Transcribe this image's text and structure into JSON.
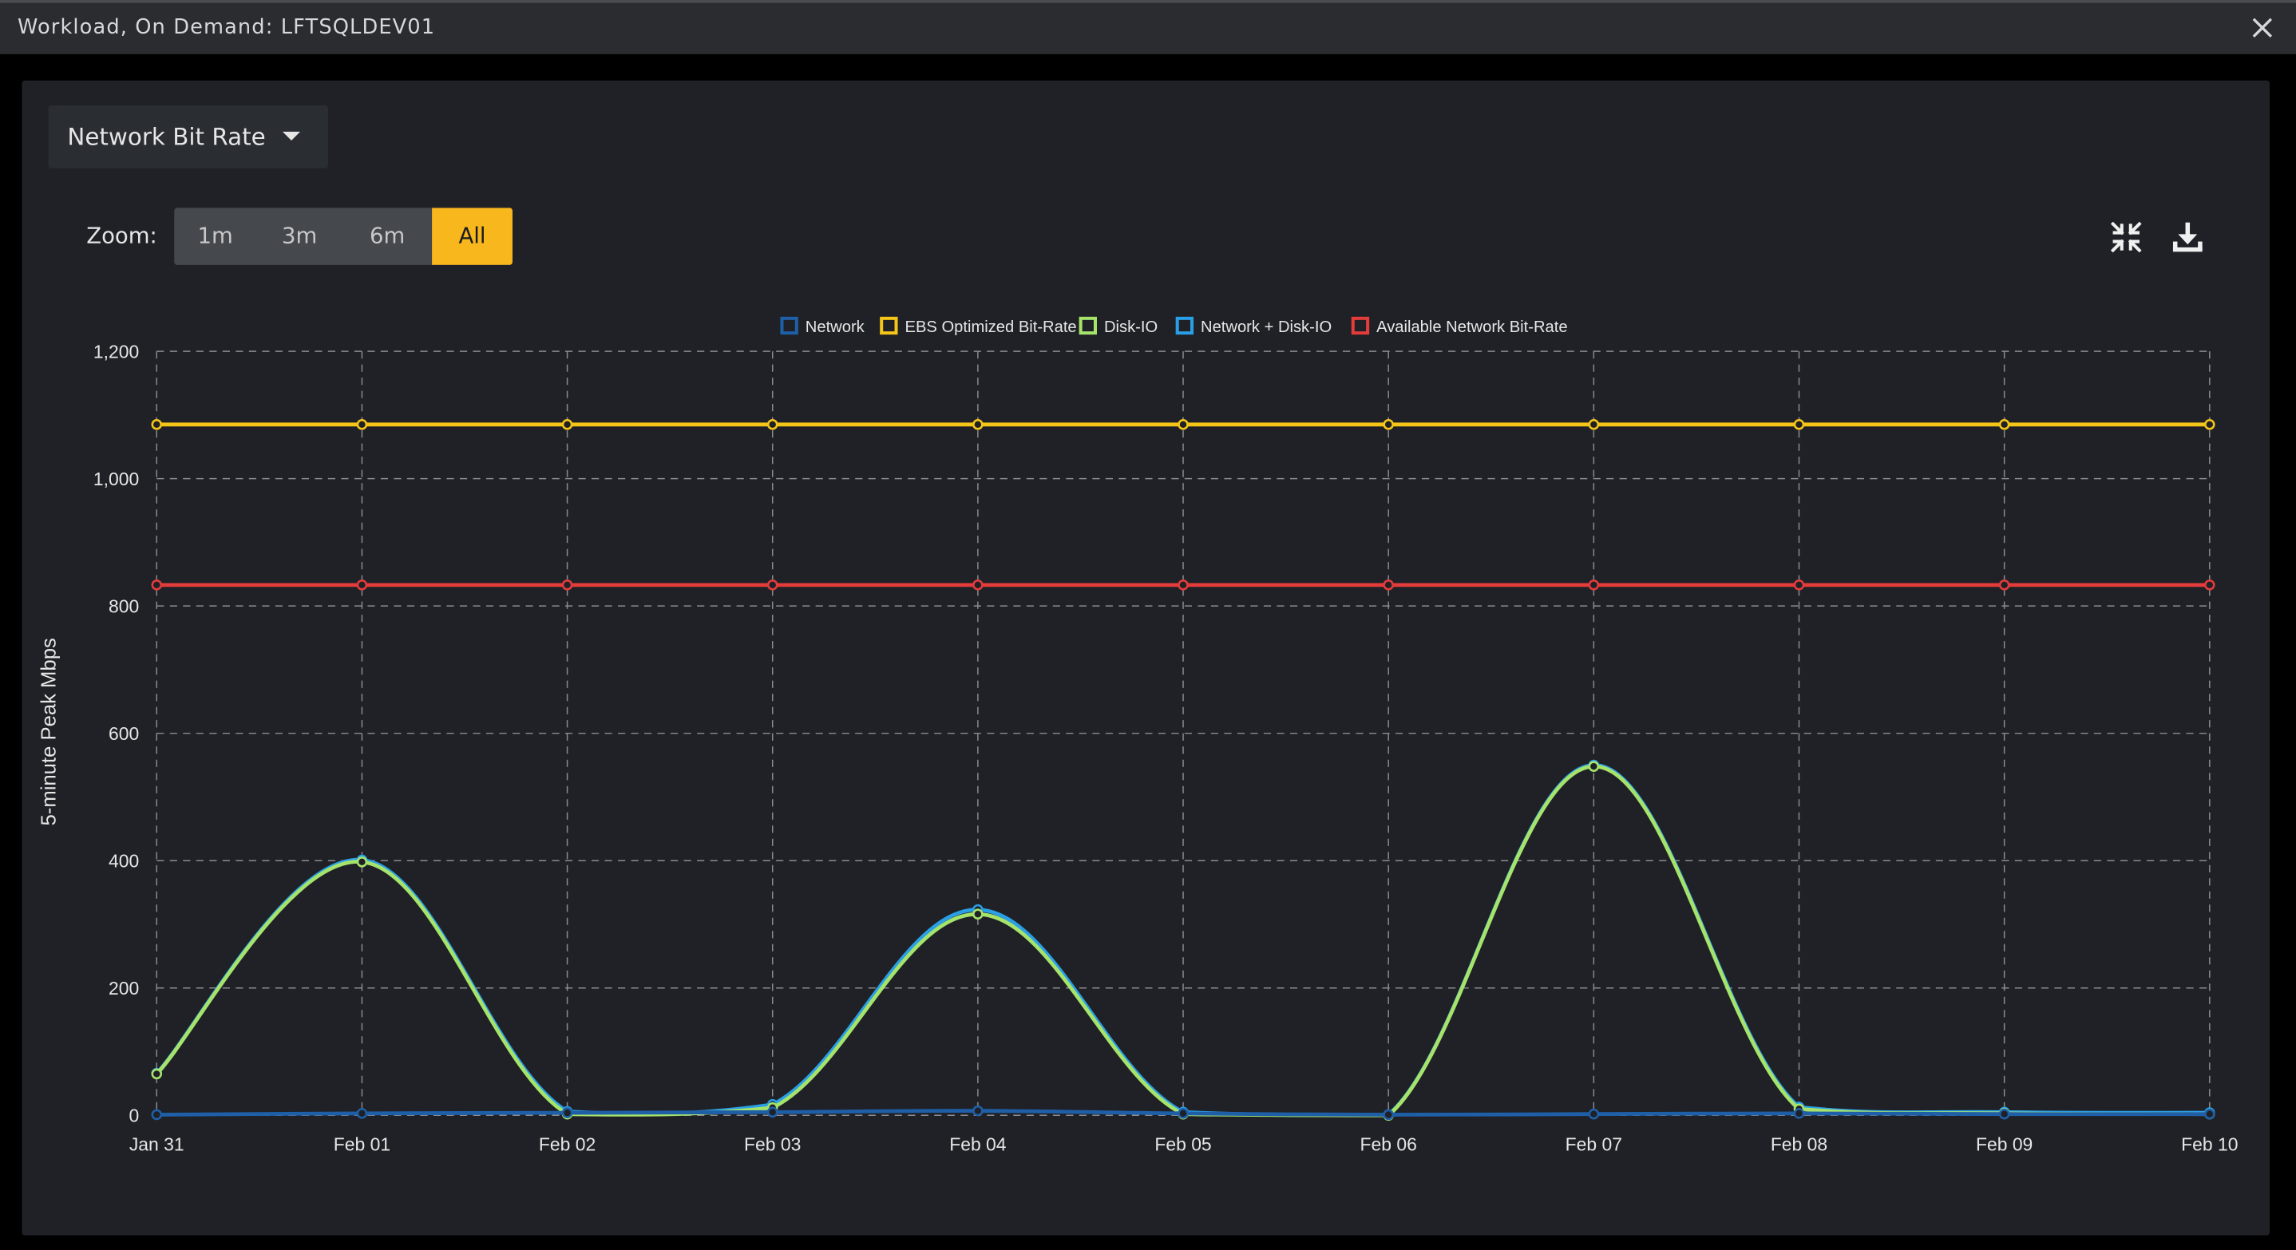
{
  "window": {
    "title": "Workload, On Demand: LFTSQLDEV01",
    "close_icon": "close-icon"
  },
  "toolbar": {
    "metric_selector": "Network Bit Rate",
    "zoom_label": "Zoom:",
    "zoom_options": [
      "1m",
      "3m",
      "6m",
      "All"
    ],
    "zoom_selected": "All",
    "collapse_icon": "collapse-arrows-icon",
    "download_icon": "download-icon"
  },
  "colors": {
    "accent": "#f7b71d",
    "network": "#1f5fa8",
    "ebs": "#f5c518",
    "disk_io": "#a6e36b",
    "network_disk_io": "#2a9fe6",
    "available": "#e43b3b"
  },
  "chart_data": {
    "type": "line",
    "ylabel": "5-minute Peak Mbps",
    "xlabel": "",
    "ylim": [
      0,
      1200
    ],
    "yticks": [
      0,
      200,
      400,
      600,
      800,
      1000,
      1200
    ],
    "ytick_labels": [
      "0",
      "200",
      "400",
      "600",
      "800",
      "1,000",
      "1,200"
    ],
    "categories": [
      "Jan 31",
      "Feb 01",
      "Feb 02",
      "Feb 03",
      "Feb 04",
      "Feb 05",
      "Feb 06",
      "Feb 07",
      "Feb 08",
      "Feb 09",
      "Feb 10"
    ],
    "grid": true,
    "legend_position": "top-center",
    "series": [
      {
        "name": "Network",
        "color": "#1f5fa8",
        "values": [
          1,
          3,
          4,
          5,
          7,
          3,
          1,
          2,
          3,
          2,
          2
        ]
      },
      {
        "name": "EBS Optimized Bit-Rate",
        "color": "#f5c518",
        "values": [
          1085,
          1085,
          1085,
          1085,
          1085,
          1085,
          1085,
          1085,
          1085,
          1085,
          1085
        ]
      },
      {
        "name": "Disk-IO",
        "color": "#a6e36b",
        "values": [
          65,
          398,
          2,
          12,
          316,
          2,
          0,
          548,
          10,
          3,
          2
        ]
      },
      {
        "name": "Network + Disk-IO",
        "color": "#2a9fe6",
        "values": [
          66,
          401,
          6,
          17,
          323,
          5,
          1,
          550,
          13,
          5,
          4
        ]
      },
      {
        "name": "Available Network Bit-Rate",
        "color": "#e43b3b",
        "values": [
          833,
          833,
          833,
          833,
          833,
          833,
          833,
          833,
          833,
          833,
          833
        ]
      }
    ]
  }
}
